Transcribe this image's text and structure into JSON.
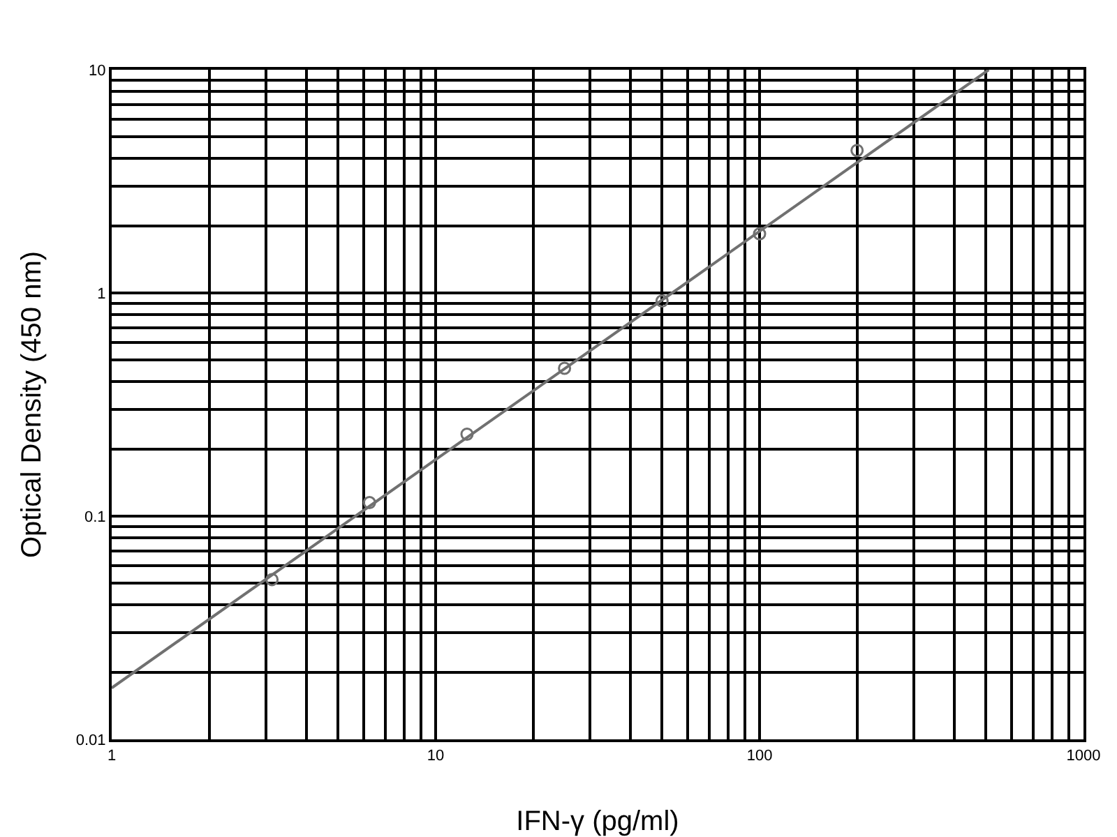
{
  "chart_data": {
    "type": "scatter",
    "xlabel": "IFN-γ (pg/ml)",
    "ylabel": "Optical Density (450 nm)",
    "log": "xy",
    "xlim": [
      1,
      1000
    ],
    "ylim": [
      0.01,
      10
    ],
    "xticks": [
      1,
      10,
      100,
      1000
    ],
    "yticks": [
      0.01,
      0.1,
      1,
      10
    ],
    "grid": true,
    "legend": false,
    "series": [
      {
        "marker": "circle",
        "color": "#707070",
        "x": [
          3.125,
          6.25,
          12.5,
          25,
          50,
          100,
          200
        ],
        "values": [
          0.052,
          0.115,
          0.233,
          0.46,
          0.92,
          1.84,
          4.35
        ]
      },
      {
        "type": "line",
        "marker": "none",
        "color": "#707070",
        "x": [
          1,
          510
        ],
        "values": [
          0.017,
          10
        ]
      }
    ]
  }
}
